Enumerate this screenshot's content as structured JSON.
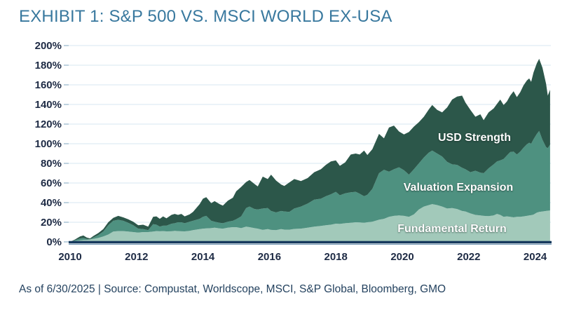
{
  "title": "EXHIBIT 1: S&P 500 VS. MSCI WORLD EX-USA",
  "footer": "As of 6/30/2025 | Source: Compustat, Worldscope, MSCI, S&P Global, Bloomberg, GMO",
  "colors": {
    "title_text": "#38789E",
    "axis_text": "#1E2B45",
    "grid": "#DFECF4",
    "tick": "#A9C2D4",
    "baseline": "#16395D",
    "baseline_under": "#6E93B0",
    "area_dark": "#2C574A",
    "area_medium": "#4E9180",
    "area_light": "#A2C9BA",
    "inline_label_text": "#FFFFFF"
  },
  "chart_data": {
    "type": "area",
    "stacked": true,
    "title": "EXHIBIT 1: S&P 500 VS. MSCI WORLD EX-USA",
    "xlabel": "",
    "ylabel": "",
    "xlim": [
      2010,
      2024.5
    ],
    "ylim": [
      0,
      200
    ],
    "grid": "horizontal",
    "legend_position": "inline-area-labels",
    "x_ticks": [
      2010,
      2012,
      2014,
      2016,
      2018,
      2020,
      2022,
      2024
    ],
    "x_tick_labels": [
      "2010",
      "2012",
      "2014",
      "2016",
      "2018",
      "2020",
      "2022",
      "2024"
    ],
    "y_ticks": [
      0,
      20,
      40,
      60,
      80,
      100,
      120,
      140,
      160,
      180,
      200
    ],
    "y_tick_labels": [
      "0%",
      "20%",
      "40%",
      "60%",
      "80%",
      "100%",
      "120%",
      "140%",
      "160%",
      "180%",
      "200%"
    ],
    "x": [
      2010.0,
      2010.15,
      2010.3,
      2010.4,
      2010.5,
      2010.6,
      2010.7,
      2010.85,
      2011.0,
      2011.15,
      2011.3,
      2011.45,
      2011.6,
      2011.75,
      2011.9,
      2012.05,
      2012.2,
      2012.35,
      2012.5,
      2012.6,
      2012.7,
      2012.8,
      2012.9,
      2013.05,
      2013.15,
      2013.25,
      2013.35,
      2013.45,
      2013.6,
      2013.7,
      2013.8,
      2013.9,
      2014.0,
      2014.1,
      2014.25,
      2014.35,
      2014.5,
      2014.6,
      2014.75,
      2014.9,
      2015.0,
      2015.15,
      2015.3,
      2015.4,
      2015.55,
      2015.65,
      2015.8,
      2015.95,
      2016.05,
      2016.2,
      2016.35,
      2016.45,
      2016.6,
      2016.75,
      2016.95,
      2017.15,
      2017.35,
      2017.55,
      2017.7,
      2017.85,
      2018.0,
      2018.12,
      2018.28,
      2018.45,
      2018.6,
      2018.72,
      2018.85,
      2018.95,
      2019.1,
      2019.3,
      2019.45,
      2019.6,
      2019.75,
      2019.9,
      2020.05,
      2020.2,
      2020.35,
      2020.5,
      2020.65,
      2020.8,
      2020.9,
      2021.05,
      2021.2,
      2021.35,
      2021.5,
      2021.65,
      2021.8,
      2021.9,
      2022.05,
      2022.2,
      2022.35,
      2022.45,
      2022.6,
      2022.75,
      2022.85,
      2022.95,
      2023.05,
      2023.15,
      2023.25,
      2023.35,
      2023.45,
      2023.55,
      2023.65,
      2023.75,
      2023.82,
      2023.88,
      2023.95,
      2024.05,
      2024.12,
      2024.22,
      2024.33,
      2024.38,
      2024.45
    ],
    "series": [
      {
        "name": "Fundamental Return",
        "color": "#A2C9BA",
        "cumulative": [
          0,
          1,
          1.5,
          2,
          2,
          2.5,
          3,
          4,
          5.5,
          7.5,
          10.5,
          11,
          11,
          10.5,
          10,
          9.5,
          10,
          10,
          10.5,
          11,
          10.8,
          11,
          10.7,
          10.8,
          11.2,
          11,
          10.8,
          10.7,
          11.3,
          11.9,
          12.5,
          13.1,
          13.5,
          13.8,
          14,
          14.5,
          13.8,
          13.5,
          14.5,
          15,
          15,
          14,
          15.5,
          15,
          14,
          13.5,
          12.2,
          13,
          12.2,
          12,
          13,
          12.5,
          12.4,
          13.2,
          13.5,
          14.5,
          15.5,
          16.3,
          17,
          17.5,
          18.6,
          18.3,
          19,
          19.5,
          20,
          19.8,
          19.5,
          20,
          20.5,
          22.6,
          23.5,
          25.5,
          26.5,
          27,
          26.5,
          25.5,
          28,
          33,
          36,
          37.5,
          38.5,
          37.5,
          36,
          34,
          34.5,
          33.5,
          31.5,
          31,
          29,
          27.5,
          27,
          26.5,
          26.2,
          27,
          28.5,
          27.5,
          25.5,
          26,
          25.5,
          25,
          25.5,
          25.5,
          26,
          26.5,
          27,
          27.2,
          27.8,
          29.8,
          30.5,
          31,
          31.5,
          31.8,
          32
        ]
      },
      {
        "name": "Valuation Expansion",
        "color": "#4E9180",
        "cumulative": [
          0,
          1.8,
          3.5,
          4,
          3,
          2.8,
          4.5,
          7,
          10.5,
          17,
          21.5,
          22.5,
          21.5,
          19.5,
          17,
          13.5,
          13,
          12,
          18,
          17.5,
          15.5,
          16.5,
          16.5,
          18.5,
          19,
          20,
          20,
          19,
          20.5,
          21.5,
          22.5,
          23.5,
          25.5,
          26.5,
          21.5,
          20.5,
          19.5,
          19,
          20.5,
          21.5,
          23,
          26,
          34.5,
          36,
          33.5,
          33,
          34,
          34.5,
          31.5,
          30,
          31.5,
          31,
          30.5,
          34,
          36,
          39,
          43,
          44,
          46.5,
          48.5,
          51,
          47.5,
          49.5,
          50.5,
          51,
          49,
          46.5,
          48,
          54,
          70,
          73.5,
          71.5,
          74,
          76,
          73,
          68.5,
          74,
          80,
          86,
          91,
          93,
          90,
          87,
          81.5,
          79,
          78.5,
          75.5,
          74,
          71,
          72.5,
          70.5,
          70,
          75,
          79,
          82,
          83,
          84.5,
          88,
          91.5,
          92,
          89,
          92,
          96,
          99.5,
          101,
          100,
          104.5,
          110,
          113,
          104,
          96.5,
          95.5,
          99
        ]
      },
      {
        "name": "USD Strength",
        "color": "#2C574A",
        "cumulative": [
          0,
          2.5,
          5.5,
          6.5,
          4.5,
          3.5,
          6,
          9,
          13,
          20,
          24.5,
          26.5,
          25,
          23,
          20.5,
          17,
          17.5,
          15.5,
          25.5,
          26,
          23.5,
          26,
          24,
          27.5,
          28.5,
          27.5,
          28.5,
          26,
          28,
          30.5,
          34.5,
          38.5,
          44,
          45.5,
          39.5,
          41.5,
          38.5,
          37,
          42,
          45,
          51.5,
          56,
          61,
          63,
          59,
          56.5,
          66.5,
          64,
          68.5,
          62.5,
          58.5,
          57,
          60.5,
          64,
          62,
          65,
          71,
          74,
          78.5,
          82,
          83,
          77.5,
          81,
          89,
          90,
          89,
          93,
          88.5,
          94.5,
          110,
          105.5,
          116.5,
          118.5,
          112.5,
          109.5,
          112,
          117.5,
          122,
          127.5,
          135,
          139.5,
          134.5,
          132,
          137,
          145,
          148,
          149,
          142,
          134.5,
          127.5,
          130,
          124,
          132,
          136,
          140.5,
          145,
          139.5,
          143,
          149,
          153.5,
          147.5,
          152.5,
          159.5,
          164.5,
          166.5,
          163,
          172.5,
          182,
          186.5,
          177.5,
          161,
          149,
          155
        ]
      }
    ]
  }
}
